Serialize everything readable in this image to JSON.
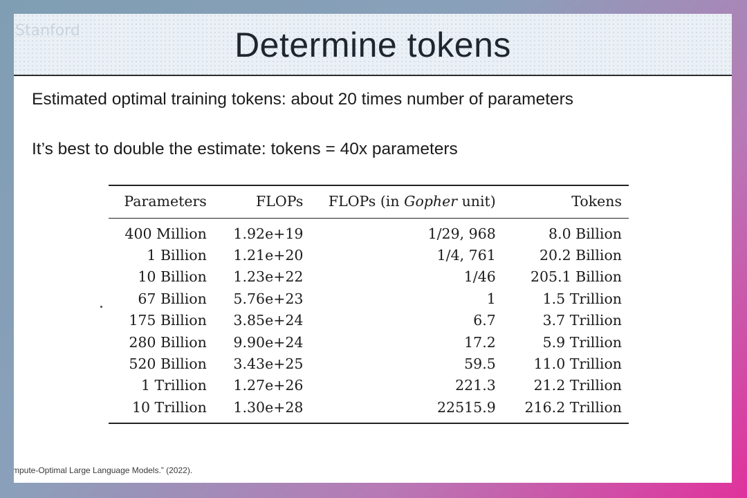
{
  "slide": {
    "title": "Determine tokens",
    "logo_text": "Stanford",
    "bullets": [
      "Estimated optimal training tokens: about 20 times number of parameters",
      "It’s best to double the estimate: tokens = 40x parameters"
    ],
    "citation": "mpute-Optimal Large Language Models.”  (2022)."
  },
  "table": {
    "headers": {
      "parameters": "Parameters",
      "flops": "FLOPs",
      "gopher_prefix": "FLOPs (in ",
      "gopher_italic": "Gopher",
      "gopher_suffix": " unit)",
      "tokens": "Tokens"
    },
    "rows": [
      {
        "parameters": "400 Million",
        "flops": "1.92e+19",
        "gopher": "1/29, 968",
        "tokens": "8.0 Billion"
      },
      {
        "parameters": "1 Billion",
        "flops": "1.21e+20",
        "gopher": "1/4, 761",
        "tokens": "20.2 Billion"
      },
      {
        "parameters": "10 Billion",
        "flops": "1.23e+22",
        "gopher": "1/46",
        "tokens": "205.1 Billion"
      },
      {
        "parameters": "67 Billion",
        "flops": "5.76e+23",
        "gopher": "1",
        "tokens": "1.5 Trillion"
      },
      {
        "parameters": "175 Billion",
        "flops": "3.85e+24",
        "gopher": "6.7",
        "tokens": "3.7 Trillion"
      },
      {
        "parameters": "280 Billion",
        "flops": "9.90e+24",
        "gopher": "17.2",
        "tokens": "5.9 Trillion"
      },
      {
        "parameters": "520 Billion",
        "flops": "3.43e+25",
        "gopher": "59.5",
        "tokens": "11.0 Trillion"
      },
      {
        "parameters": "1 Trillion",
        "flops": "1.27e+26",
        "gopher": "221.3",
        "tokens": "21.2 Trillion"
      },
      {
        "parameters": "10 Trillion",
        "flops": "1.30e+28",
        "gopher": "22515.9",
        "tokens": "216.2 Trillion"
      }
    ]
  }
}
